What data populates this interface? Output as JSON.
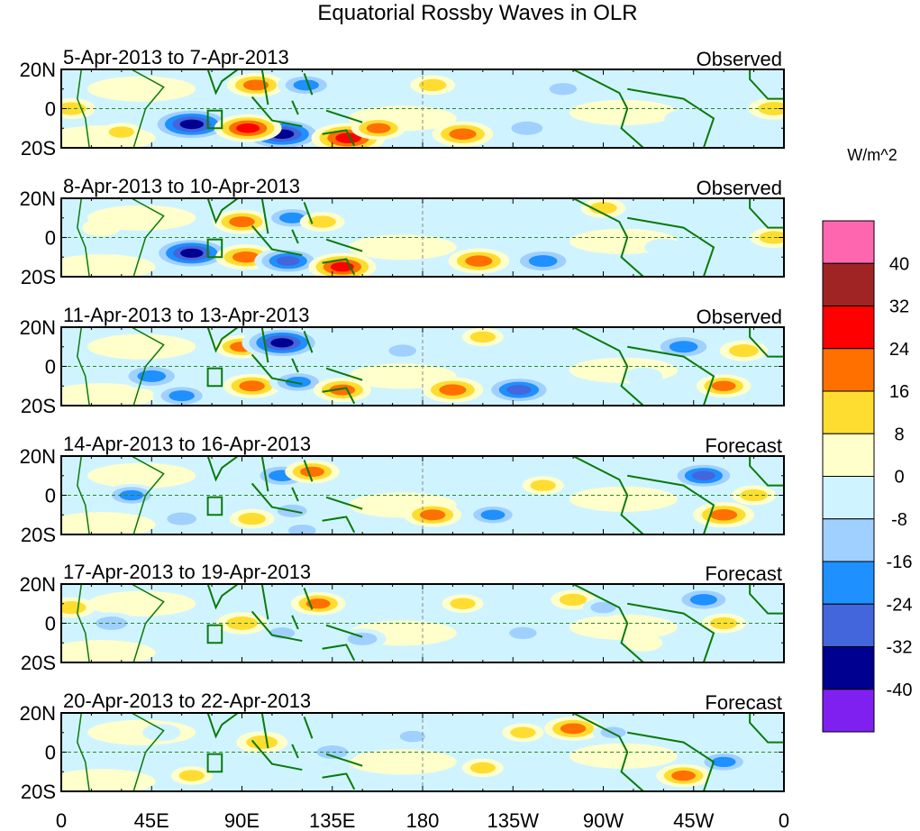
{
  "chart_data": {
    "type": "heatmap",
    "title": "Equatorial Rossby Waves in OLR",
    "units": "W/m^2",
    "x_ticks": [
      "0",
      "45E",
      "90E",
      "135E",
      "180",
      "135W",
      "90W",
      "45W",
      "0"
    ],
    "x_tick_lons": [
      0,
      45,
      90,
      135,
      180,
      225,
      270,
      315,
      360
    ],
    "y_ticks": [
      "20N",
      "0",
      "20S"
    ],
    "lat_range": [
      -20,
      20
    ],
    "lon_range": [
      0,
      360
    ],
    "colorbar": {
      "labels": [
        "40",
        "32",
        "24",
        "16",
        "8",
        "0",
        "-8",
        "-16",
        "-24",
        "-32",
        "-40"
      ],
      "colors": [
        "#ff66b0",
        "#a02424",
        "#ff0000",
        "#ff7000",
        "#ffdd30",
        "#ffffcc",
        "#d0f4ff",
        "#a0d0ff",
        "#1e90ff",
        "#4466dd",
        "#000090",
        "#8020f0"
      ]
    },
    "panels": [
      {
        "date": "5-Apr-2013 to 7-Apr-2013",
        "kind": "Observed",
        "anomalies": [
          [
            65,
            -8,
            -36
          ],
          [
            110,
            -13,
            -36
          ],
          [
            93,
            -10,
            26
          ],
          [
            143,
            -15,
            30
          ],
          [
            97,
            12,
            20
          ],
          [
            122,
            12,
            -20
          ],
          [
            158,
            -10,
            18
          ],
          [
            200,
            -13,
            22
          ],
          [
            232,
            -10,
            -16
          ],
          [
            250,
            10,
            -12
          ],
          [
            185,
            12,
            12
          ],
          [
            5,
            0,
            14
          ],
          [
            30,
            -12,
            10
          ],
          [
            310,
            -5,
            -8
          ],
          [
            355,
            0,
            16
          ],
          [
            300,
            10,
            -6
          ]
        ]
      },
      {
        "date": "8-Apr-2013 to 10-Apr-2013",
        "kind": "Observed",
        "anomalies": [
          [
            65,
            -8,
            -34
          ],
          [
            92,
            -10,
            22
          ],
          [
            90,
            8,
            20
          ],
          [
            115,
            10,
            -20
          ],
          [
            113,
            -12,
            -26
          ],
          [
            140,
            -15,
            26
          ],
          [
            130,
            8,
            12
          ],
          [
            208,
            -12,
            22
          ],
          [
            240,
            -12,
            -24
          ],
          [
            195,
            10,
            -8
          ],
          [
            270,
            15,
            12
          ],
          [
            300,
            -5,
            -8
          ],
          [
            355,
            0,
            14
          ],
          [
            20,
            5,
            8
          ]
        ]
      },
      {
        "date": "11-Apr-2013 to 13-Apr-2013",
        "kind": "Observed",
        "anomalies": [
          [
            45,
            -5,
            -24
          ],
          [
            60,
            -15,
            -20
          ],
          [
            95,
            -10,
            20
          ],
          [
            90,
            10,
            18
          ],
          [
            110,
            12,
            -34
          ],
          [
            118,
            -8,
            -20
          ],
          [
            140,
            -12,
            20
          ],
          [
            170,
            8,
            -12
          ],
          [
            195,
            -12,
            22
          ],
          [
            228,
            -12,
            -28
          ],
          [
            210,
            15,
            10
          ],
          [
            290,
            -5,
            -8
          ],
          [
            310,
            10,
            -24
          ],
          [
            340,
            8,
            14
          ],
          [
            330,
            -10,
            18
          ]
        ]
      },
      {
        "date": "14-Apr-2013 to 16-Apr-2013",
        "kind": "Forecast",
        "anomalies": [
          [
            35,
            0,
            -18
          ],
          [
            60,
            -12,
            -14
          ],
          [
            110,
            10,
            -22
          ],
          [
            125,
            12,
            18
          ],
          [
            115,
            -8,
            -14
          ],
          [
            95,
            -12,
            12
          ],
          [
            185,
            -10,
            20
          ],
          [
            215,
            -10,
            -18
          ],
          [
            240,
            5,
            10
          ],
          [
            320,
            10,
            -26
          ],
          [
            330,
            -10,
            22
          ],
          [
            345,
            0,
            12
          ],
          [
            120,
            -18,
            -12
          ]
        ]
      },
      {
        "date": "17-Apr-2013 to 19-Apr-2013",
        "kind": "Forecast",
        "anomalies": [
          [
            5,
            8,
            14
          ],
          [
            25,
            0,
            -16
          ],
          [
            90,
            0,
            16
          ],
          [
            110,
            -5,
            -10
          ],
          [
            128,
            10,
            18
          ],
          [
            150,
            -8,
            -14
          ],
          [
            200,
            10,
            10
          ],
          [
            230,
            -5,
            -12
          ],
          [
            255,
            12,
            12
          ],
          [
            320,
            12,
            -22
          ],
          [
            330,
            0,
            12
          ],
          [
            290,
            -10,
            8
          ],
          [
            270,
            8,
            -10
          ]
        ]
      },
      {
        "date": "20-Apr-2013 to 22-Apr-2013",
        "kind": "Forecast",
        "anomalies": [
          [
            100,
            5,
            16
          ],
          [
            135,
            0,
            -16
          ],
          [
            175,
            8,
            -10
          ],
          [
            210,
            -8,
            10
          ],
          [
            255,
            12,
            20
          ],
          [
            275,
            10,
            -10
          ],
          [
            330,
            -5,
            -18
          ],
          [
            310,
            -12,
            18
          ],
          [
            350,
            -8,
            -8
          ],
          [
            65,
            -12,
            10
          ],
          [
            50,
            10,
            -8
          ],
          [
            230,
            10,
            10
          ]
        ]
      }
    ]
  }
}
